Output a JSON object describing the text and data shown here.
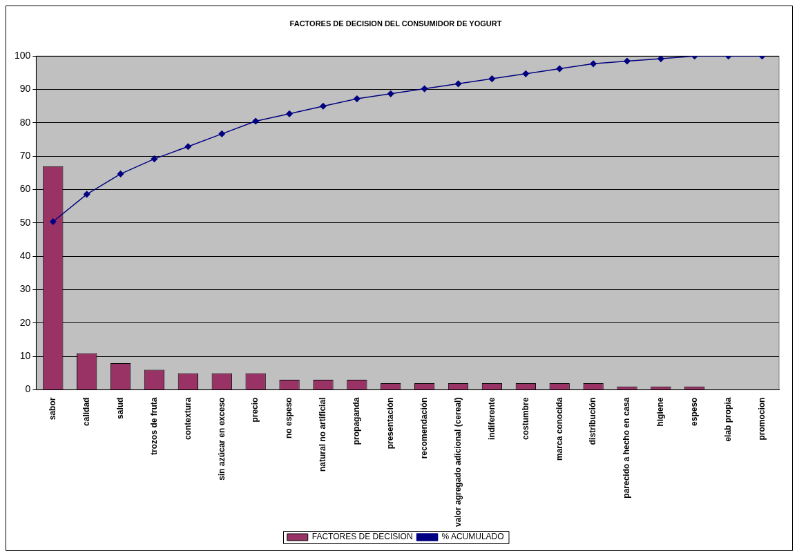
{
  "chart_data": {
    "type": "bar",
    "title": "FACTORES DE DECISION DEL CONSUMIDOR DE YOGURT",
    "categories": [
      "sabor",
      "calidad",
      "salud",
      "trozos de fruta",
      "contextura",
      "sin azúcar en exceso",
      "precio",
      "no espeso",
      "natural no artificial",
      "propaganda",
      "presentación",
      "recomendación",
      "valor agregado adicional (cereal)",
      "indiferente",
      "costumbre",
      "marca conocida",
      "distribución",
      "parecido a hecho en casa",
      "higiene",
      "espeso",
      "elab propia",
      "promocion"
    ],
    "series": [
      {
        "name": "FACTORES DE DECISION",
        "color": "#993366",
        "values": [
          67,
          11,
          8,
          6,
          5,
          5,
          5,
          3,
          3,
          3,
          2,
          2,
          2,
          2,
          2,
          2,
          2,
          1,
          1,
          1,
          0,
          0
        ]
      },
      {
        "name": "% ACUMULADO",
        "type": "line",
        "color": "#000080",
        "marker": "diamond",
        "values": [
          50.4,
          58.6,
          64.7,
          69.2,
          72.9,
          76.7,
          80.5,
          82.7,
          85.0,
          87.2,
          88.7,
          90.2,
          91.7,
          93.2,
          94.7,
          96.2,
          97.7,
          98.5,
          99.2,
          100,
          100,
          100
        ]
      }
    ],
    "ylim": [
      0,
      100
    ],
    "yticks": [
      0,
      10,
      20,
      30,
      40,
      50,
      60,
      70,
      80,
      90,
      100
    ],
    "grid": "y",
    "legend": "bottom"
  }
}
